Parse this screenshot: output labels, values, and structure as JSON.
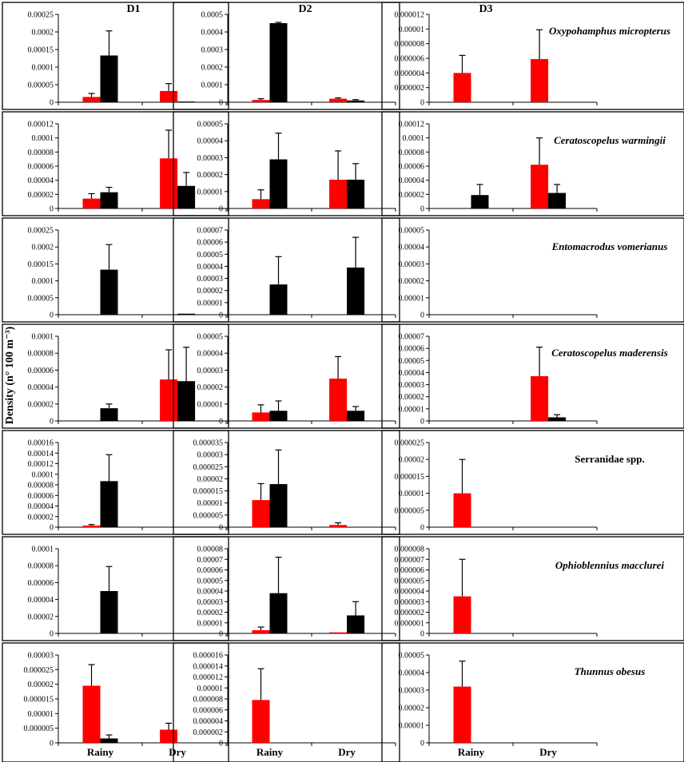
{
  "y_axis_title": "Density (n° 100 m⁻³)",
  "columns": [
    "D1",
    "D2",
    "D3"
  ],
  "colors": {
    "rainy_bar": "#ff0000",
    "dry_bar": "#000000",
    "error_bar": "#000000"
  },
  "chart_data": [
    {
      "type": "bar",
      "row": 0,
      "col": 0,
      "species": "",
      "categories": [
        "Rainy",
        "Dry"
      ],
      "ylim": [
        0,
        0.00025
      ],
      "yticks": [
        "0",
        "0.00005",
        "0.0001",
        "0.00015",
        "0.0002",
        "0.00025"
      ],
      "series": [
        {
          "name": "red",
          "values": [
            1.5e-05,
            3.2e-05
          ],
          "errors": [
            1e-05,
            2.1e-05
          ]
        },
        {
          "name": "black",
          "values": [
            0.000133,
            2e-06
          ],
          "errors": [
            7e-05,
            0
          ]
        }
      ]
    },
    {
      "type": "bar",
      "row": 0,
      "col": 1,
      "species": "",
      "categories": [
        "Rainy",
        "Dry"
      ],
      "ylim": [
        0,
        0.0005
      ],
      "yticks": [
        "0",
        "0.0001",
        "0.0002",
        "0.0003",
        "0.0004",
        "0.0005"
      ],
      "series": [
        {
          "name": "red",
          "values": [
            1.3e-05,
            2e-05
          ],
          "errors": [
            7e-06,
            5e-06
          ]
        },
        {
          "name": "black",
          "values": [
            0.00045,
            1e-05
          ],
          "errors": [
            5e-06,
            5e-06
          ]
        }
      ]
    },
    {
      "type": "bar",
      "row": 0,
      "col": 2,
      "species": "Oxypohamphus micropterus",
      "italic": true,
      "categories": [
        "Rainy",
        "Dry"
      ],
      "ylim": [
        0,
        1.2e-05
      ],
      "yticks": [
        "0",
        "0.000002",
        "0.000004",
        "0.000006",
        "0.000008",
        "0.00001",
        "0.000012"
      ],
      "series": [
        {
          "name": "red",
          "values": [
            4e-06,
            5.9e-06
          ],
          "errors": [
            2.4e-06,
            4e-06
          ]
        },
        {
          "name": "black",
          "values": [
            0,
            0
          ],
          "errors": [
            0,
            0
          ]
        }
      ]
    },
    {
      "type": "bar",
      "row": 1,
      "col": 0,
      "species": "",
      "categories": [
        "Rainy",
        "Dry"
      ],
      "ylim": [
        0,
        0.00012
      ],
      "yticks": [
        "0",
        "0.00002",
        "0.00004",
        "0.00006",
        "0.00008",
        "0.0001",
        "0.00012"
      ],
      "series": [
        {
          "name": "red",
          "values": [
            1.4e-05,
            7.1e-05
          ],
          "errors": [
            7e-06,
            4e-05
          ]
        },
        {
          "name": "black",
          "values": [
            2.3e-05,
            3.2e-05
          ],
          "errors": [
            7e-06,
            1.9e-05
          ]
        }
      ]
    },
    {
      "type": "bar",
      "row": 1,
      "col": 1,
      "species": "",
      "categories": [
        "Rainy",
        "Dry"
      ],
      "ylim": [
        0,
        5e-05
      ],
      "yticks": [
        "0",
        "0.00001",
        "0.00002",
        "0.00003",
        "0.00004",
        "0.00005"
      ],
      "series": [
        {
          "name": "red",
          "values": [
            5.5e-06,
            1.7e-05
          ],
          "errors": [
            5.5e-06,
            1.7e-05
          ]
        },
        {
          "name": "black",
          "values": [
            2.9e-05,
            1.7e-05
          ],
          "errors": [
            1.55e-05,
            9.5e-06
          ]
        }
      ]
    },
    {
      "type": "bar",
      "row": 1,
      "col": 2,
      "species": "Ceratoscopelus warmingii",
      "italic": true,
      "categories": [
        "Rainy",
        "Dry"
      ],
      "ylim": [
        0,
        0.00012
      ],
      "yticks": [
        "0",
        "0.00002",
        "0.00004",
        "0.00006",
        "0.00008",
        "0.0001",
        "0.00012"
      ],
      "series": [
        {
          "name": "red",
          "values": [
            0,
            6.2e-05
          ],
          "errors": [
            0,
            3.8e-05
          ]
        },
        {
          "name": "black",
          "values": [
            1.9e-05,
            2.2e-05
          ],
          "errors": [
            1.5e-05,
            1.2e-05
          ]
        }
      ]
    },
    {
      "type": "bar",
      "row": 2,
      "col": 0,
      "species": "",
      "categories": [
        "Rainy",
        "Dry"
      ],
      "ylim": [
        0,
        0.00025
      ],
      "yticks": [
        "0",
        "0.00005",
        "0.0001",
        "0.00015",
        "0.0002",
        "0.00025"
      ],
      "series": [
        {
          "name": "red",
          "values": [
            0,
            0
          ],
          "errors": [
            0,
            0
          ]
        },
        {
          "name": "black",
          "values": [
            0.000133,
            3e-06
          ],
          "errors": [
            7.4e-05,
            0
          ]
        }
      ]
    },
    {
      "type": "bar",
      "row": 2,
      "col": 1,
      "species": "",
      "categories": [
        "Rainy",
        "Dry"
      ],
      "ylim": [
        0,
        7e-05
      ],
      "yticks": [
        "0",
        "0.00001",
        "0.00002",
        "0.00003",
        "0.00004",
        "0.00005",
        "0.00006",
        "0.00007"
      ],
      "series": [
        {
          "name": "red",
          "values": [
            0,
            0
          ],
          "errors": [
            0,
            0
          ]
        },
        {
          "name": "black",
          "values": [
            2.5e-05,
            3.9e-05
          ],
          "errors": [
            2.3e-05,
            2.5e-05
          ]
        }
      ]
    },
    {
      "type": "bar",
      "row": 2,
      "col": 2,
      "species": "Entomacrodus vomerianus",
      "italic": true,
      "categories": [
        "Rainy",
        "Dry"
      ],
      "ylim": [
        0,
        5e-05
      ],
      "yticks": [
        "0",
        "0.00001",
        "0.00002",
        "0.00003",
        "0.00004",
        "0.00005"
      ],
      "series": [
        {
          "name": "red",
          "values": [
            0,
            0
          ],
          "errors": [
            0,
            0
          ]
        },
        {
          "name": "black",
          "values": [
            0,
            0
          ],
          "errors": [
            0,
            0
          ]
        }
      ]
    },
    {
      "type": "bar",
      "row": 3,
      "col": 0,
      "species": "",
      "categories": [
        "Rainy",
        "Dry"
      ],
      "ylim": [
        0,
        0.0001
      ],
      "yticks": [
        "0",
        "0.00002",
        "0.00004",
        "0.00006",
        "0.00008",
        "0.0001"
      ],
      "series": [
        {
          "name": "red",
          "values": [
            0,
            4.9e-05
          ],
          "errors": [
            0,
            3.5e-05
          ]
        },
        {
          "name": "black",
          "values": [
            1.5e-05,
            4.7e-05
          ],
          "errors": [
            5e-06,
            4e-05
          ]
        }
      ]
    },
    {
      "type": "bar",
      "row": 3,
      "col": 1,
      "species": "",
      "categories": [
        "Rainy",
        "Dry"
      ],
      "ylim": [
        0,
        5e-05
      ],
      "yticks": [
        "0",
        "0.00001",
        "0.00002",
        "0.00003",
        "0.00004",
        "0.00005"
      ],
      "series": [
        {
          "name": "red",
          "values": [
            5e-06,
            2.5e-05
          ],
          "errors": [
            4.5e-06,
            1.3e-05
          ]
        },
        {
          "name": "black",
          "values": [
            6e-06,
            6e-06
          ],
          "errors": [
            5.8e-06,
            2.5e-06
          ]
        }
      ]
    },
    {
      "type": "bar",
      "row": 3,
      "col": 2,
      "species": "Ceratoscopelus maderensis",
      "italic": true,
      "categories": [
        "Rainy",
        "Dry"
      ],
      "ylim": [
        0,
        7e-05
      ],
      "yticks": [
        "0",
        "0.00001",
        "0.00002",
        "0.00003",
        "0.00004",
        "0.00005",
        "0.00006",
        "0.00007"
      ],
      "series": [
        {
          "name": "red",
          "values": [
            0,
            3.7e-05
          ],
          "errors": [
            0,
            2.4e-05
          ]
        },
        {
          "name": "black",
          "values": [
            0,
            3e-06
          ],
          "errors": [
            0,
            2.2e-06
          ]
        }
      ]
    },
    {
      "type": "bar",
      "row": 4,
      "col": 0,
      "species": "",
      "categories": [
        "Rainy",
        "Dry"
      ],
      "ylim": [
        0,
        0.00016
      ],
      "yticks": [
        "0",
        "0.00002",
        "0.00004",
        "0.00006",
        "0.00008",
        "0.0001",
        "0.00012",
        "0.00014",
        "0.00016"
      ],
      "series": [
        {
          "name": "red",
          "values": [
            3e-06,
            0
          ],
          "errors": [
            2e-06,
            0
          ]
        },
        {
          "name": "black",
          "values": [
            8.7e-05,
            0
          ],
          "errors": [
            5e-05,
            0
          ]
        }
      ]
    },
    {
      "type": "bar",
      "row": 4,
      "col": 1,
      "species": "",
      "categories": [
        "Rainy",
        "Dry"
      ],
      "ylim": [
        0,
        3.5e-05
      ],
      "yticks": [
        "0",
        "0.000005",
        "0.00001",
        "0.000015",
        "0.00002",
        "0.000025",
        "0.00003",
        "0.000035"
      ],
      "series": [
        {
          "name": "red",
          "values": [
            1.12e-05,
            9e-07
          ],
          "errors": [
            6.8e-06,
            9e-07
          ]
        },
        {
          "name": "black",
          "values": [
            1.78e-05,
            0
          ],
          "errors": [
            1.41e-05,
            0
          ]
        }
      ]
    },
    {
      "type": "bar",
      "row": 4,
      "col": 2,
      "species": "Serranidae spp.",
      "italic": false,
      "categories": [
        "Rainy",
        "Dry"
      ],
      "ylim": [
        0,
        2.5e-05
      ],
      "yticks": [
        "0",
        "0.000005",
        "0.00001",
        "0.000015",
        "0.00002",
        "0.000025"
      ],
      "series": [
        {
          "name": "red",
          "values": [
            1e-05,
            0
          ],
          "errors": [
            1e-05,
            0
          ]
        },
        {
          "name": "black",
          "values": [
            0,
            0
          ],
          "errors": [
            0,
            0
          ]
        }
      ]
    },
    {
      "type": "bar",
      "row": 5,
      "col": 0,
      "species": "",
      "categories": [
        "Rainy",
        "Dry"
      ],
      "ylim": [
        0,
        0.0001
      ],
      "yticks": [
        "0",
        "0.00002",
        "0.00004",
        "0.00006",
        "0.00008",
        "0.0001"
      ],
      "series": [
        {
          "name": "red",
          "values": [
            0,
            0
          ],
          "errors": [
            0,
            0
          ]
        },
        {
          "name": "black",
          "values": [
            5e-05,
            0
          ],
          "errors": [
            2.9e-05,
            0
          ]
        }
      ]
    },
    {
      "type": "bar",
      "row": 5,
      "col": 1,
      "species": "",
      "categories": [
        "Rainy",
        "Dry"
      ],
      "ylim": [
        0,
        8e-05
      ],
      "yticks": [
        "0",
        "0.00001",
        "0.00002",
        "0.00003",
        "0.00004",
        "0.00005",
        "0.00006",
        "0.00007",
        "0.00008"
      ],
      "series": [
        {
          "name": "red",
          "values": [
            3e-06,
            1e-06
          ],
          "errors": [
            3e-06,
            0
          ]
        },
        {
          "name": "black",
          "values": [
            3.8e-05,
            1.7e-05
          ],
          "errors": [
            3.4e-05,
            1.3e-05
          ]
        }
      ]
    },
    {
      "type": "bar",
      "row": 5,
      "col": 2,
      "species": "Ophioblennius macclurei",
      "italic": true,
      "categories": [
        "Rainy",
        "Dry"
      ],
      "ylim": [
        0,
        8e-06
      ],
      "yticks": [
        "0",
        "0.000001",
        "0.000002",
        "0.000003",
        "0.000004",
        "0.000005",
        "0.000006",
        "0.000007",
        "0.000008"
      ],
      "series": [
        {
          "name": "red",
          "values": [
            3.5e-06,
            0
          ],
          "errors": [
            3.5e-06,
            0
          ]
        },
        {
          "name": "black",
          "values": [
            0,
            0
          ],
          "errors": [
            0,
            0
          ]
        }
      ]
    },
    {
      "type": "bar",
      "row": 6,
      "col": 0,
      "species": "",
      "categories": [
        "Rainy",
        "Dry"
      ],
      "ylim": [
        0,
        3e-05
      ],
      "yticks": [
        "0",
        "0.000005",
        "0.00001",
        "0.000015",
        "0.00002",
        "0.000025",
        "0.00003"
      ],
      "series": [
        {
          "name": "red",
          "values": [
            1.95e-05,
            4.5e-06
          ],
          "errors": [
            7.2e-06,
            2.2e-06
          ]
        },
        {
          "name": "black",
          "values": [
            1.5e-06,
            0
          ],
          "errors": [
            1.2e-06,
            0
          ]
        }
      ]
    },
    {
      "type": "bar",
      "row": 6,
      "col": 1,
      "species": "",
      "categories": [
        "Rainy",
        "Dry"
      ],
      "ylim": [
        0,
        1.6e-05
      ],
      "yticks": [
        "0",
        "0.000002",
        "0.000004",
        "0.000006",
        "0.000008",
        "0.00001",
        "0.000012",
        "0.000014",
        "0.000016"
      ],
      "series": [
        {
          "name": "red",
          "values": [
            7.8e-06,
            0
          ],
          "errors": [
            5.7e-06,
            0
          ]
        },
        {
          "name": "black",
          "values": [
            0,
            0
          ],
          "errors": [
            0,
            0
          ]
        }
      ]
    },
    {
      "type": "bar",
      "row": 6,
      "col": 2,
      "species": "Thunnus obesus",
      "italic": true,
      "categories": [
        "Rainy",
        "Dry"
      ],
      "ylim": [
        0,
        5e-05
      ],
      "yticks": [
        "0",
        "0.00001",
        "0.00002",
        "0.00003",
        "0.00004",
        "0.00005"
      ],
      "series": [
        {
          "name": "red",
          "values": [
            3.2e-05,
            0
          ],
          "errors": [
            1.45e-05,
            0
          ]
        },
        {
          "name": "black",
          "values": [
            0,
            0
          ],
          "errors": [
            0,
            0
          ]
        }
      ]
    }
  ]
}
